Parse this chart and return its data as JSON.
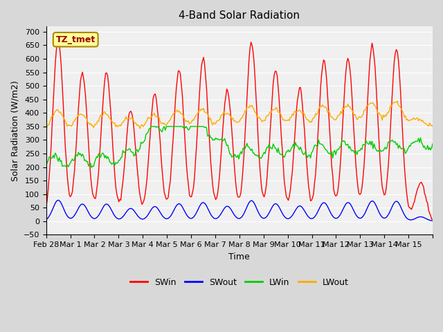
{
  "title": "4-Band Solar Radiation",
  "xlabel": "Time",
  "ylabel": "Solar Radiation (W/m2)",
  "ylim": [
    -50,
    720
  ],
  "background_color": "#d8d8d8",
  "plot_bg_color": "#f0f0f0",
  "grid_color": "#ffffff",
  "annotation_text": "TZ_tmet",
  "annotation_bg": "#ffff99",
  "annotation_border": "#aa8800",
  "legend_entries": [
    "SWin",
    "SWout",
    "LWin",
    "LWout"
  ],
  "legend_colors": [
    "#ff0000",
    "#0000ff",
    "#00cc00",
    "#ffaa00"
  ],
  "line_width": 1.0,
  "x_tick_positions": [
    0,
    1,
    2,
    3,
    4,
    5,
    6,
    7,
    8,
    9,
    10,
    11,
    12,
    13,
    14,
    15,
    16
  ],
  "x_tick_labels": [
    "Feb 28",
    "Mar 1",
    "Mar 2",
    "Mar 3",
    "Mar 4",
    "Mar 5",
    "Mar 6",
    "Mar 7",
    "Mar 8",
    "Mar 9",
    "Mar 10",
    "Mar 11",
    "Mar 12",
    "Mar 13",
    "Mar 14",
    "Mar 15",
    ""
  ],
  "colors": {
    "SWin": "#ff0000",
    "SWout": "#0000ff",
    "LWin": "#00cc00",
    "LWout": "#ffaa00"
  },
  "day_peaks_SWin": {
    "0": 675,
    "1": 550,
    "2": 550,
    "3": 410,
    "4": 470,
    "5": 560,
    "6": 600,
    "7": 480,
    "8": 660,
    "9": 560,
    "10": 490,
    "11": 595,
    "12": 600,
    "13": 650,
    "14": 640,
    "15": 140
  }
}
